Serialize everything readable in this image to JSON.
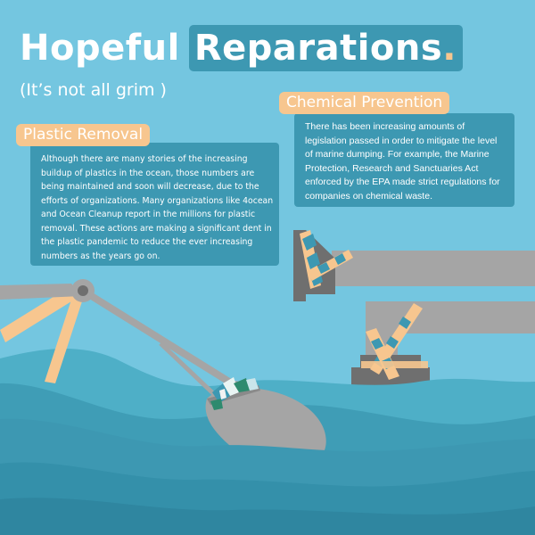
{
  "title": {
    "word1": "Hopeful",
    "word2": "Reparations",
    "dot": "."
  },
  "subtitle": "(It’s not all grim )",
  "sections": {
    "chemical": {
      "heading": "Chemical Prevention",
      "body": "There has been increasing amounts of legislation passed in order to mitigate the level of marine dumping. For example, the Marine Protection, Research and Sanctuaries Act enforced by the EPA made strict regulations for companies on chemical waste."
    },
    "plastic": {
      "heading": "Plastic Removal",
      "body": "Although there are many stories of the increasing buildup of plastics in the ocean, those numbers are being maintained and soon will decrease, due to the efforts of organizations. Many organizations like 4ocean and Ocean Cleanup report in the millions for plastic removal. These actions are making a significant dent in the plastic pandemic to reduce the ever increasing numbers as the years go on."
    }
  },
  "colors": {
    "sky": "#74c6e0",
    "accent": "#f7c68f",
    "panel": "#3d98b2",
    "wave_light": "#4eafc7",
    "wave_mid": "#3f9db6",
    "wave_dark": "#3490aa",
    "machine": "#a5a5a5",
    "machine_dark": "#6f6f6f"
  },
  "icons": [
    "crane-arm",
    "net-bag",
    "pipe",
    "chain",
    "plastic-debris"
  ]
}
